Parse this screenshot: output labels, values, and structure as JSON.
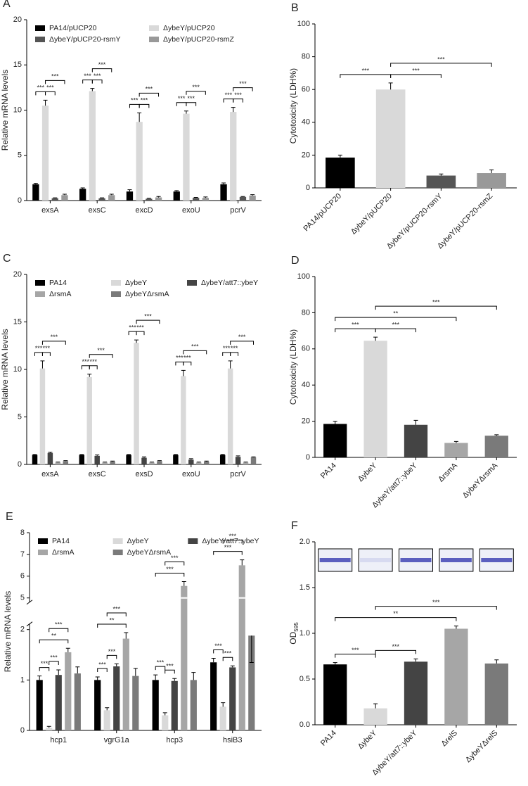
{
  "chart_data": [
    {
      "panel": "A",
      "type": "bar",
      "ylabel": "Relative mRNA levels",
      "categories": [
        "exsA",
        "exsC",
        "excD",
        "exoU",
        "pcrV"
      ],
      "series": [
        {
          "name": "PA14/pUCP20",
          "color": "#000000",
          "values": [
            1.8,
            1.3,
            1.0,
            1.0,
            1.8
          ],
          "errors": [
            0.1,
            0.1,
            0.2,
            0.1,
            0.15
          ]
        },
        {
          "name": "ΔybeY/pUCP20",
          "color": "#d9d9d9",
          "values": [
            10.5,
            12.1,
            8.7,
            9.6,
            9.8
          ],
          "errors": [
            0.6,
            0.3,
            1.0,
            0.3,
            0.5
          ]
        },
        {
          "name": "ΔybeY/pUCP20-rsmY",
          "color": "#555555",
          "values": [
            0.25,
            0.25,
            0.2,
            0.3,
            0.4
          ],
          "errors": [
            0.05,
            0.05,
            0.05,
            0.05,
            0.05
          ]
        },
        {
          "name": "ΔybeY/pUCP20-rsmZ",
          "color": "#999999",
          "values": [
            0.6,
            0.6,
            0.35,
            0.3,
            0.55
          ],
          "errors": [
            0.1,
            0.1,
            0.1,
            0.1,
            0.1
          ]
        }
      ],
      "ylim": [
        0,
        20
      ],
      "yticks": [
        0,
        5,
        10,
        15,
        20
      ],
      "legend_columns": 2,
      "brackets": [
        [
          {
            "label": "***",
            "from": 0,
            "to": 1
          },
          {
            "label": "***",
            "from": 1,
            "to": 2
          },
          {
            "label": "***",
            "from": 1,
            "to": 3
          }
        ],
        [
          {
            "label": "***",
            "from": 0,
            "to": 1
          },
          {
            "label": "***",
            "from": 1,
            "to": 2
          },
          {
            "label": "***",
            "from": 1,
            "to": 3
          }
        ],
        [
          {
            "label": "***",
            "from": 0,
            "to": 1
          },
          {
            "label": "***",
            "from": 1,
            "to": 2
          },
          {
            "label": "***",
            "from": 1,
            "to": 3
          }
        ],
        [
          {
            "label": "***",
            "from": 0,
            "to": 1
          },
          {
            "label": "***",
            "from": 1,
            "to": 2
          },
          {
            "label": "***",
            "from": 1,
            "to": 3
          }
        ],
        [
          {
            "label": "***",
            "from": 0,
            "to": 1
          },
          {
            "label": "***",
            "from": 1,
            "to": 2
          },
          {
            "label": "***",
            "from": 1,
            "to": 3
          }
        ]
      ]
    },
    {
      "panel": "B",
      "type": "bar",
      "ylabel": "Cytotoxicity (LDH%)",
      "categories": [
        "PA14/pUCP20",
        "ΔybeY/pUCP20",
        "ΔybeY/pUCP20-rsmY",
        "ΔybeY/pUCP20-rsmZ"
      ],
      "values": [
        18.5,
        60,
        7.5,
        9
      ],
      "errors": [
        1.5,
        4,
        1,
        2
      ],
      "colors": [
        "#000000",
        "#d9d9d9",
        "#555555",
        "#999999"
      ],
      "ylim": [
        0,
        100
      ],
      "yticks": [
        0,
        20,
        40,
        60,
        80,
        100
      ],
      "xlabel_rotation": 45,
      "brackets": [
        {
          "label": "***",
          "from": 0,
          "to": 1
        },
        {
          "label": "***",
          "from": 1,
          "to": 2
        },
        {
          "label": "***",
          "from": 1,
          "to": 3
        }
      ]
    },
    {
      "panel": "C",
      "type": "bar",
      "ylabel": "Relative mRNA levels",
      "categories": [
        "exsA",
        "exsC",
        "exsD",
        "exoU",
        "pcrV"
      ],
      "series": [
        {
          "name": "PA14",
          "color": "#000000",
          "values": [
            1,
            1,
            1,
            1,
            1
          ],
          "errors": [
            0.05,
            0.05,
            0.05,
            0.05,
            0.05
          ]
        },
        {
          "name": "ΔybeY",
          "color": "#d9d9d9",
          "values": [
            10.1,
            9.2,
            12.8,
            9.3,
            10.1
          ],
          "errors": [
            0.8,
            0.3,
            0.3,
            0.6,
            0.8
          ]
        },
        {
          "name": "ΔybeY/att7::ybeY",
          "color": "#444444",
          "values": [
            1.2,
            0.9,
            0.7,
            0.5,
            0.8
          ],
          "errors": [
            0.1,
            0.1,
            0.1,
            0.1,
            0.1
          ]
        },
        {
          "name": "ΔrsmA",
          "color": "#a6a6a6",
          "values": [
            0.2,
            0.2,
            0.2,
            0.2,
            0.2
          ],
          "errors": [
            0.05,
            0.05,
            0.05,
            0.05,
            0.05
          ]
        },
        {
          "name": "ΔybeYΔrsmA",
          "color": "#7a7a7a",
          "values": [
            0.35,
            0.3,
            0.35,
            0.3,
            0.75
          ],
          "errors": [
            0.05,
            0.05,
            0.05,
            0.05,
            0.05
          ]
        }
      ],
      "ylim": [
        0,
        20
      ],
      "yticks": [
        0,
        5,
        10,
        15,
        20
      ],
      "legend_columns": 3,
      "brackets": [
        [
          {
            "label": "***",
            "from": 0,
            "to": 1
          },
          {
            "label": "***",
            "from": 1,
            "to": 2
          },
          {
            "label": "***",
            "from": 1,
            "to": 4
          }
        ],
        [
          {
            "label": "***",
            "from": 0,
            "to": 1
          },
          {
            "label": "***",
            "from": 1,
            "to": 2
          },
          {
            "label": "***",
            "from": 1,
            "to": 4
          }
        ],
        [
          {
            "label": "***",
            "from": 0,
            "to": 1
          },
          {
            "label": "***",
            "from": 1,
            "to": 2
          },
          {
            "label": "***",
            "from": 1,
            "to": 4
          }
        ],
        [
          {
            "label": "***",
            "from": 0,
            "to": 1
          },
          {
            "label": "***",
            "from": 1,
            "to": 2
          },
          {
            "label": "***",
            "from": 1,
            "to": 4
          }
        ],
        [
          {
            "label": "***",
            "from": 0,
            "to": 1
          },
          {
            "label": "***",
            "from": 1,
            "to": 2
          },
          {
            "label": "***",
            "from": 1,
            "to": 4
          }
        ]
      ]
    },
    {
      "panel": "D",
      "type": "bar",
      "ylabel": "Cytotoxicity (LDH%)",
      "categories": [
        "PA14",
        "ΔybeY",
        "ΔybeY/att7::ybeY",
        "ΔrsmA",
        "ΔybeYΔrsmA"
      ],
      "values": [
        18.5,
        64.5,
        18,
        8,
        12
      ],
      "errors": [
        1.5,
        2,
        2.5,
        0.8,
        0.5
      ],
      "colors": [
        "#000000",
        "#d9d9d9",
        "#444444",
        "#a6a6a6",
        "#7a7a7a"
      ],
      "ylim": [
        0,
        100
      ],
      "yticks": [
        0,
        20,
        40,
        60,
        80,
        100
      ],
      "xlabel_rotation": 45,
      "brackets": [
        {
          "label": "***",
          "from": 0,
          "to": 1
        },
        {
          "label": "***",
          "from": 1,
          "to": 2
        },
        {
          "label": "**",
          "from": 0,
          "to": 3
        },
        {
          "label": "***",
          "from": 1,
          "to": 4
        }
      ]
    },
    {
      "panel": "E",
      "type": "bar",
      "ylabel": "Relative mRNA levels",
      "categories": [
        "hcp1",
        "vgrG1a",
        "hcp3",
        "hsiB3"
      ],
      "series": [
        {
          "name": "PA14",
          "color": "#000000",
          "values": [
            1.0,
            1.0,
            1.0,
            1.35
          ],
          "errors": [
            0.08,
            0.06,
            0.1,
            0.08
          ]
        },
        {
          "name": "ΔybeY",
          "color": "#d9d9d9",
          "values": [
            0.05,
            0.4,
            0.3,
            0.47
          ],
          "errors": [
            0.03,
            0.05,
            0.05,
            0.08
          ]
        },
        {
          "name": "ΔybeY/att7::ybeY",
          "color": "#444444",
          "values": [
            1.1,
            1.27,
            0.98,
            1.25
          ],
          "errors": [
            0.1,
            0.05,
            0.05,
            0.03
          ]
        },
        {
          "name": "ΔrsmA",
          "color": "#a6a6a6",
          "values": [
            1.55,
            1.82,
            5.55,
            6.5
          ],
          "errors": [
            0.08,
            0.12,
            0.2,
            0.25
          ]
        },
        {
          "name": "ΔybeYΔrsmA",
          "color": "#7a7a7a",
          "values": [
            1.13,
            1.08,
            1.0,
            1.88
          ],
          "errors": [
            0.13,
            0.15,
            0.15,
            0.15
          ]
        }
      ],
      "ylim": [
        0,
        8
      ],
      "ybreak": [
        2,
        5
      ],
      "yticks": [
        0,
        1,
        2,
        5,
        6,
        7,
        8
      ],
      "legend_columns": 3,
      "brackets": [
        [
          {
            "label": "***",
            "from": 0,
            "to": 1
          },
          {
            "label": "***",
            "from": 1,
            "to": 2
          },
          {
            "label": "**",
            "from": 0,
            "to": 3
          },
          {
            "label": "***",
            "from": 1,
            "to": 3
          }
        ],
        [
          {
            "label": "***",
            "from": 0,
            "to": 1
          },
          {
            "label": "***",
            "from": 1,
            "to": 2
          },
          {
            "label": "**",
            "from": 0,
            "to": 3
          },
          {
            "label": "***",
            "from": 1,
            "to": 3
          }
        ],
        [
          {
            "label": "***",
            "from": 0,
            "to": 1
          },
          {
            "label": "***",
            "from": 1,
            "to": 2
          },
          {
            "label": "***",
            "from": 0,
            "to": 3
          },
          {
            "label": "***",
            "from": 1,
            "to": 3
          }
        ],
        [
          {
            "label": "***",
            "from": 0,
            "to": 1
          },
          {
            "label": "***",
            "from": 1,
            "to": 2
          },
          {
            "label": "***",
            "from": 0,
            "to": 3
          },
          {
            "label": "***",
            "from": 1,
            "to": 3
          }
        ]
      ]
    },
    {
      "panel": "F",
      "type": "bar",
      "ylabel": {
        "text": "OD",
        "subscript": "595"
      },
      "categories": [
        "PA14",
        "ΔybeY",
        "ΔybeY/att7::ybeY",
        "ΔrelS",
        "ΔybeYΔrelS"
      ],
      "values": [
        0.66,
        0.18,
        0.69,
        1.05,
        0.67
      ],
      "errors": [
        0.02,
        0.05,
        0.03,
        0.03,
        0.04
      ],
      "colors": [
        "#000000",
        "#d9d9d9",
        "#444444",
        "#a6a6a6",
        "#7a7a7a"
      ],
      "ylim": [
        0,
        2
      ],
      "yticks": [
        {
          "value": 0,
          "label": "0.0"
        },
        0.5,
        {
          "value": 1,
          "label": "1.0"
        },
        1.5,
        {
          "value": 2,
          "label": "2.0"
        }
      ],
      "xlabel_rotation": 45,
      "brackets": [
        {
          "label": "***",
          "from": 0,
          "to": 1
        },
        {
          "label": "***",
          "from": 1,
          "to": 2
        },
        {
          "label": "**",
          "from": 0,
          "to": 3
        },
        {
          "label": "***",
          "from": 1,
          "to": 4
        }
      ]
    }
  ]
}
